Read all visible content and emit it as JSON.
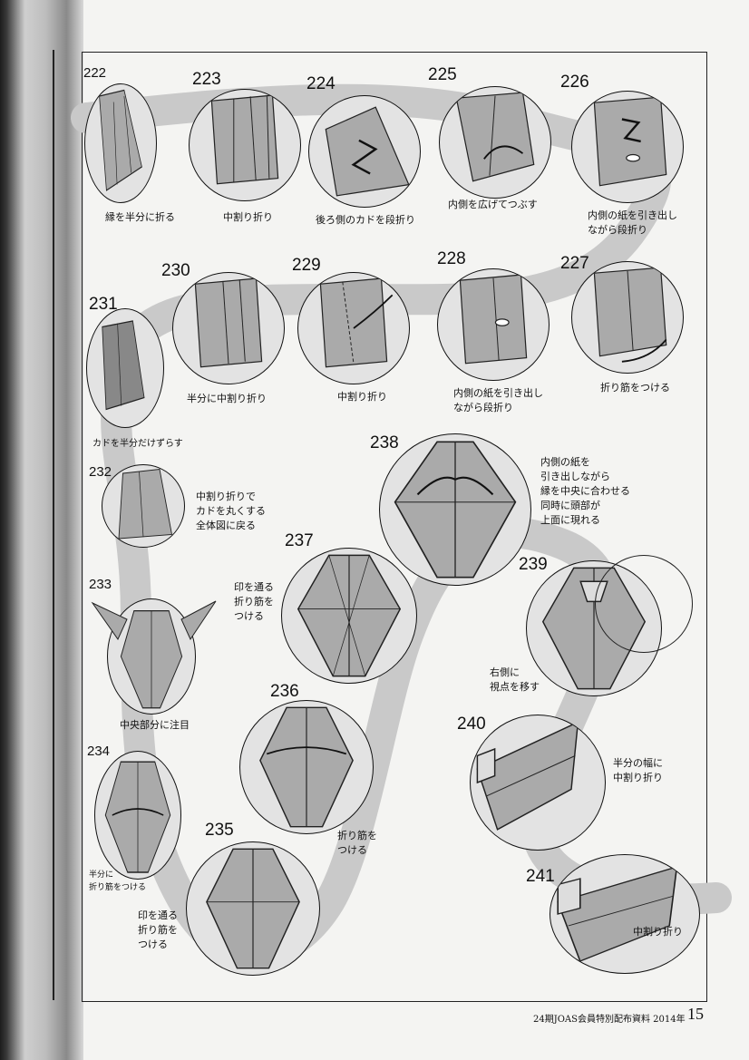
{
  "steps": [
    {
      "num": "222",
      "caption": "縁を半分に折る"
    },
    {
      "num": "223",
      "caption": "中割り折り"
    },
    {
      "num": "224",
      "caption": "後ろ側のカドを段折り"
    },
    {
      "num": "225",
      "caption": "内側を広げてつぶす"
    },
    {
      "num": "226",
      "caption": "内側の紙を引き出し\nながら段折り"
    },
    {
      "num": "227",
      "caption": "折り筋をつける"
    },
    {
      "num": "228",
      "caption": "内側の紙を引き出し\nながら段折り"
    },
    {
      "num": "229",
      "caption": "中割り折り"
    },
    {
      "num": "230",
      "caption": "半分に中割り折り"
    },
    {
      "num": "231",
      "caption": "カドを半分だけずらす"
    },
    {
      "num": "232",
      "caption": "中割り折りで\nカドを丸くする\n全体図に戻る"
    },
    {
      "num": "233",
      "caption": "中央部分に注目"
    },
    {
      "num": "234",
      "caption": "半分に\n折り筋をつける"
    },
    {
      "num": "235",
      "caption": "印を通る\n折り筋を\nつける"
    },
    {
      "num": "236",
      "caption": "折り筋を\nつける"
    },
    {
      "num": "237",
      "caption": "印を通る\n折り筋を\nつける"
    },
    {
      "num": "238",
      "caption": "内側の紙を\n引き出しながら\n縁を中央に合わせる\n同時に頭部が\n上面に現れる"
    },
    {
      "num": "239",
      "caption": "右側に\n視点を移す"
    },
    {
      "num": "240",
      "caption": "半分の幅に\n中割り折り"
    },
    {
      "num": "241",
      "caption": "中割り折り"
    }
  ],
  "footer": {
    "publication": "24期JOAS会員特別配布資料 2014年",
    "page": "15"
  }
}
